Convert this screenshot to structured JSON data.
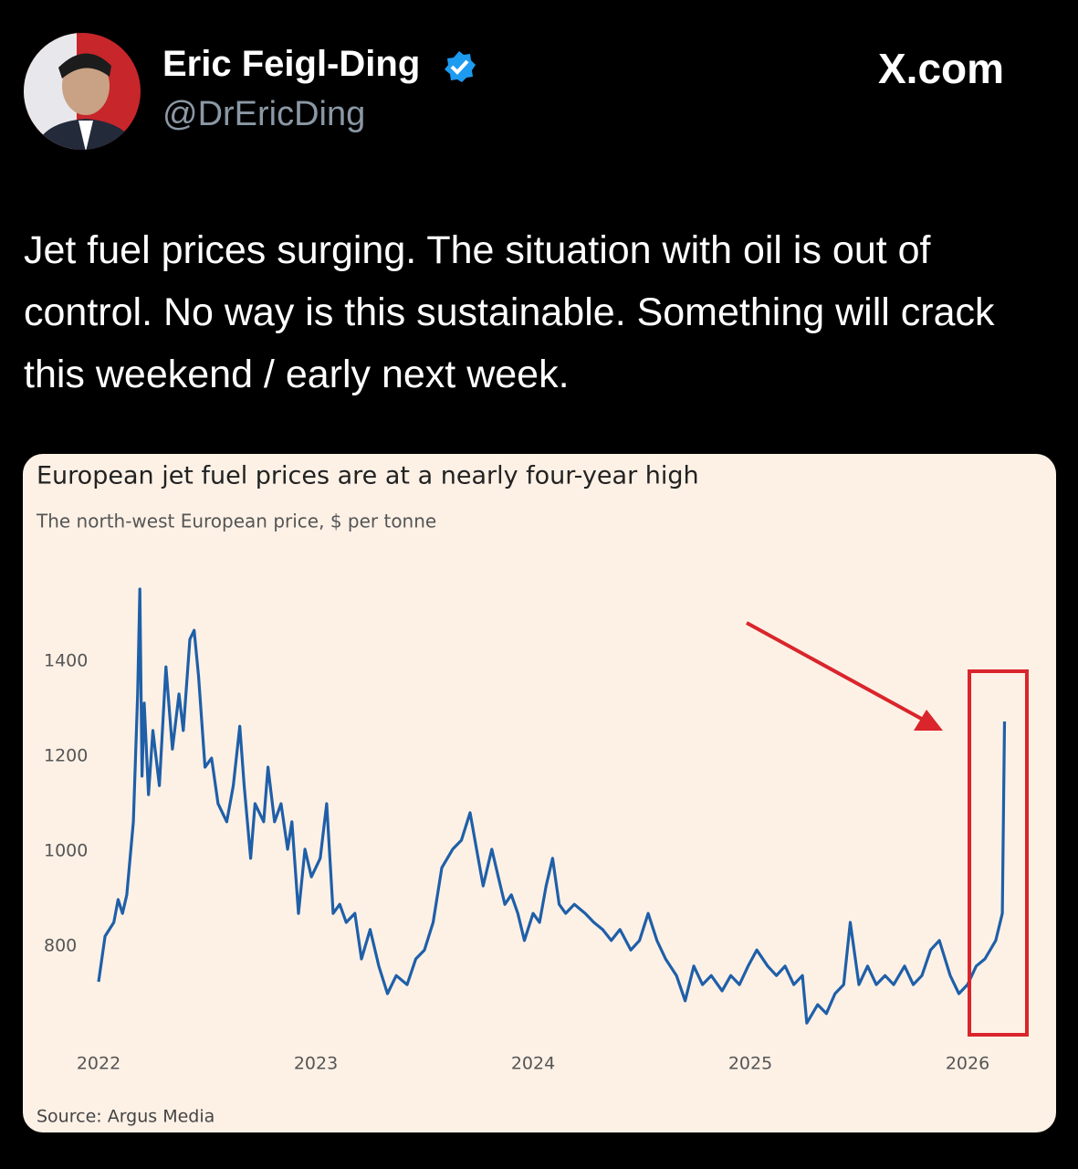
{
  "author": {
    "name": "Eric Feigl-Ding",
    "handle": "@DrEricDing"
  },
  "site": "X.com",
  "tweet_text": "Jet fuel prices surging. The situation with oil is out of control. No way is this sustainable. Something will crack this weekend / early next week.",
  "chart_data": {
    "type": "line",
    "title": "European jet fuel prices are at a nearly four-year high",
    "subtitle": "The north-west European price, $ per tonne",
    "source": "Source: Argus Media",
    "x": [
      2022.0,
      2022.03,
      2022.07,
      2022.09,
      2022.11,
      2022.13,
      2022.16,
      2022.18,
      2022.19,
      2022.2,
      2022.21,
      2022.23,
      2022.25,
      2022.28,
      2022.31,
      2022.34,
      2022.37,
      2022.39,
      2022.42,
      2022.44,
      2022.46,
      2022.49,
      2022.52,
      2022.55,
      2022.59,
      2022.62,
      2022.65,
      2022.67,
      2022.7,
      2022.72,
      2022.76,
      2022.78,
      2022.81,
      2022.84,
      2022.87,
      2022.89,
      2022.92,
      2022.95,
      2022.98,
      2023.02,
      2023.05,
      2023.08,
      2023.11,
      2023.14,
      2023.18,
      2023.21,
      2023.25,
      2023.29,
      2023.33,
      2023.37,
      2023.42,
      2023.46,
      2023.5,
      2023.54,
      2023.58,
      2023.63,
      2023.67,
      2023.71,
      2023.74,
      2023.77,
      2023.81,
      2023.84,
      2023.87,
      2023.9,
      2023.93,
      2023.96,
      2024.0,
      2024.03,
      2024.06,
      2024.09,
      2024.12,
      2024.15,
      2024.19,
      2024.24,
      2024.28,
      2024.32,
      2024.36,
      2024.4,
      2024.45,
      2024.49,
      2024.53,
      2024.57,
      2024.61,
      2024.66,
      2024.7,
      2024.74,
      2024.78,
      2024.82,
      2024.87,
      2024.91,
      2024.95,
      2024.99,
      2025.03,
      2025.08,
      2025.12,
      2025.16,
      2025.2,
      2025.24,
      2025.26,
      2025.31,
      2025.35,
      2025.39,
      2025.43,
      2025.46,
      2025.5,
      2025.54,
      2025.58,
      2025.62,
      2025.66,
      2025.71,
      2025.75,
      2025.79,
      2025.83,
      2025.87,
      2025.92,
      2025.96,
      2026.0,
      2026.04,
      2026.08,
      2026.13,
      2026.16,
      2026.17
    ],
    "series": [
      {
        "name": "Jet fuel price",
        "color": "#1f5fa8",
        "values": [
          725,
          821,
          850,
          898,
          869,
          908,
          1062,
          1331,
          1552,
          1158,
          1312,
          1119,
          1254,
          1138,
          1388,
          1215,
          1331,
          1254,
          1446,
          1465,
          1369,
          1177,
          1196,
          1100,
          1062,
          1138,
          1263,
          1138,
          985,
          1100,
          1062,
          1177,
          1062,
          1100,
          1004,
          1062,
          869,
          1004,
          946,
          985,
          1100,
          869,
          888,
          850,
          869,
          773,
          835,
          758,
          700,
          738,
          719,
          773,
          792,
          850,
          965,
          1004,
          1023,
          1081,
          1004,
          927,
          1004,
          946,
          888,
          908,
          869,
          812,
          869,
          850,
          927,
          985,
          888,
          869,
          888,
          869,
          850,
          835,
          812,
          835,
          792,
          812,
          869,
          812,
          773,
          738,
          685,
          758,
          719,
          738,
          706,
          738,
          719,
          758,
          792,
          758,
          738,
          758,
          719,
          738,
          638,
          677,
          658,
          700,
          719,
          850,
          719,
          758,
          719,
          738,
          719,
          758,
          719,
          738,
          792,
          812,
          738,
          700,
          719,
          758,
          773,
          812,
          869,
          1273
        ]
      }
    ],
    "xlim": [
      2022,
      2026.2
    ],
    "ylim": [
      600,
      1600
    ],
    "xticks": [
      2022,
      2023,
      2024,
      2025,
      2026
    ],
    "yticks": [
      800,
      1000,
      1200,
      1400
    ],
    "grid": false
  }
}
